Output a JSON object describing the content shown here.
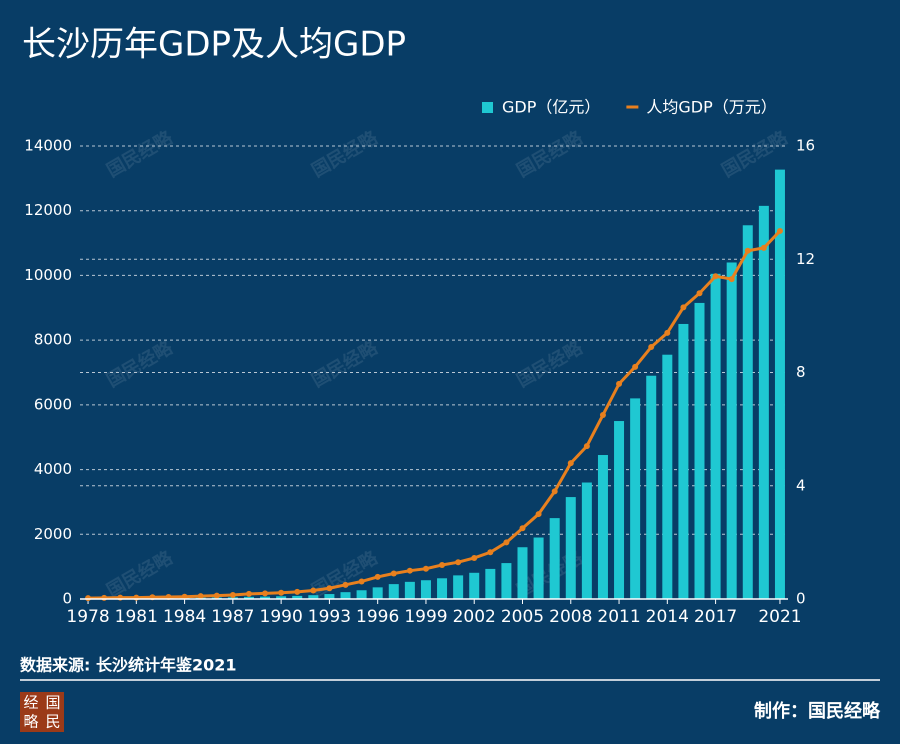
{
  "chart_data": {
    "type": "bar_line",
    "title": "长沙历年GDP及人均GDP",
    "source": "数据来源: 长沙统计年鉴2021",
    "credit": "制作：国民经略",
    "watermark": "国民经略",
    "logo": [
      "经",
      "国",
      "略",
      "民"
    ],
    "x": [
      1978,
      1979,
      1980,
      1981,
      1982,
      1983,
      1984,
      1985,
      1986,
      1987,
      1988,
      1989,
      1990,
      1991,
      1992,
      1993,
      1994,
      1995,
      1996,
      1997,
      1998,
      1999,
      2000,
      2001,
      2002,
      2003,
      2004,
      2005,
      2006,
      2007,
      2008,
      2009,
      2010,
      2011,
      2012,
      2013,
      2014,
      2015,
      2016,
      2017,
      2018,
      2019,
      2020,
      2021
    ],
    "xlim": [
      1977.5,
      2021.5
    ],
    "xticks": [
      1978,
      1981,
      1984,
      1987,
      1990,
      1993,
      1996,
      1999,
      2002,
      2005,
      2008,
      2011,
      2014,
      2017,
      2021
    ],
    "ylim": [
      0,
      14000
    ],
    "yticks": [
      0,
      2000,
      4000,
      6000,
      8000,
      10000,
      12000,
      14000
    ],
    "y2lim": [
      0,
      16
    ],
    "y2ticks": [
      0,
      4,
      8,
      12,
      16
    ],
    "grid": true,
    "legend": "top-right",
    "series": [
      {
        "name": "GDP（亿元）",
        "type": "bar",
        "color": "#1fc8d2",
        "values": [
          15,
          17,
          20,
          22,
          25,
          28,
          33,
          40,
          45,
          53,
          66,
          74,
          84,
          96,
          118,
          153,
          211,
          270,
          360,
          460,
          530,
          580,
          640,
          730,
          810,
          930,
          1110,
          1600,
          1900,
          2500,
          3150,
          3600,
          4450,
          5500,
          6200,
          6900,
          7550,
          8500,
          9150,
          10050,
          10400,
          11550,
          12150,
          13270
        ]
      },
      {
        "name": "人均GDP（万元）",
        "type": "line",
        "axis": "y2",
        "color": "#e8801e",
        "values": [
          0.03,
          0.04,
          0.05,
          0.05,
          0.06,
          0.07,
          0.08,
          0.1,
          0.12,
          0.14,
          0.18,
          0.2,
          0.22,
          0.25,
          0.3,
          0.38,
          0.5,
          0.62,
          0.78,
          0.9,
          1.0,
          1.07,
          1.2,
          1.3,
          1.45,
          1.65,
          2.0,
          2.5,
          3.0,
          3.8,
          4.8,
          5.4,
          6.5,
          7.6,
          8.2,
          8.9,
          9.4,
          10.3,
          10.8,
          11.4,
          11.3,
          12.3,
          12.4,
          13.0
        ]
      }
    ]
  }
}
